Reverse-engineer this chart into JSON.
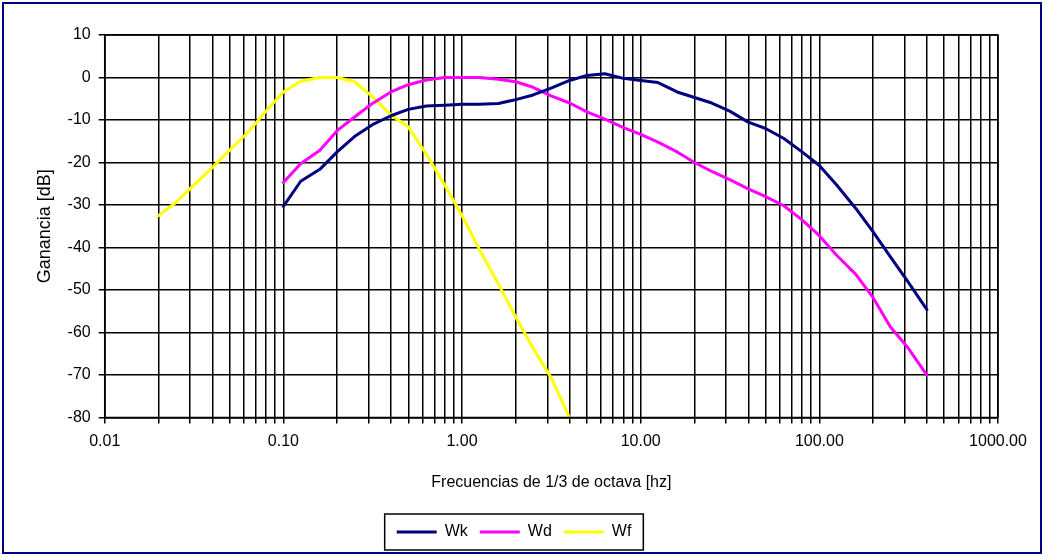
{
  "chart_data": {
    "type": "line",
    "xlabel": "Frecuencias de 1/3 de octava [hz]",
    "ylabel": "Ganancia [dB]",
    "log": "x",
    "grid": true,
    "legend": "bottom",
    "marker": "none",
    "line_style": "solid",
    "xlim": [
      0.01,
      1000
    ],
    "ylim": [
      -80,
      10
    ],
    "xticks": [
      0.01,
      {
        "value": 0.02,
        "label": null
      },
      {
        "value": 0.03,
        "label": null
      },
      {
        "value": 0.04,
        "label": null
      },
      {
        "value": 0.05,
        "label": null
      },
      {
        "value": 0.06,
        "label": null
      },
      {
        "value": 0.07,
        "label": null
      },
      {
        "value": 0.08,
        "label": null
      },
      {
        "value": 0.09,
        "label": null
      },
      {
        "value": 0.1,
        "label": "0.10"
      },
      {
        "value": 0.2,
        "label": null
      },
      {
        "value": 0.3,
        "label": null
      },
      {
        "value": 0.4,
        "label": null
      },
      {
        "value": 0.5,
        "label": null
      },
      {
        "value": 0.6,
        "label": null
      },
      {
        "value": 0.7,
        "label": null
      },
      {
        "value": 0.8,
        "label": null
      },
      {
        "value": 0.9,
        "label": null
      },
      {
        "value": 1,
        "label": "1.00"
      },
      {
        "value": 2,
        "label": null
      },
      {
        "value": 3,
        "label": null
      },
      {
        "value": 4,
        "label": null
      },
      {
        "value": 5,
        "label": null
      },
      {
        "value": 6,
        "label": null
      },
      {
        "value": 7,
        "label": null
      },
      {
        "value": 8,
        "label": null
      },
      {
        "value": 9,
        "label": null
      },
      {
        "value": 10,
        "label": "10.00"
      },
      {
        "value": 20,
        "label": null
      },
      {
        "value": 30,
        "label": null
      },
      {
        "value": 40,
        "label": null
      },
      {
        "value": 50,
        "label": null
      },
      {
        "value": 60,
        "label": null
      },
      {
        "value": 70,
        "label": null
      },
      {
        "value": 80,
        "label": null
      },
      {
        "value": 90,
        "label": null
      },
      {
        "value": 100,
        "label": "100.00"
      },
      {
        "value": 200,
        "label": null
      },
      {
        "value": 300,
        "label": null
      },
      {
        "value": 400,
        "label": null
      },
      {
        "value": 500,
        "label": null
      },
      {
        "value": 600,
        "label": null
      },
      {
        "value": 700,
        "label": null
      },
      {
        "value": 800,
        "label": null
      },
      {
        "value": 900,
        "label": null
      },
      {
        "value": 1000,
        "label": "1000.00"
      }
    ],
    "yticks": [
      10,
      0,
      -10,
      -20,
      -30,
      -40,
      -50,
      -60,
      -70,
      -80
    ],
    "series": [
      {
        "name": "Wk",
        "color": "#000080",
        "x": [
          0.1,
          0.125,
          0.16,
          0.2,
          0.25,
          0.315,
          0.4,
          0.5,
          0.63,
          0.8,
          1,
          1.25,
          1.6,
          2,
          2.5,
          3.15,
          4,
          5,
          6.3,
          8,
          10,
          12.5,
          16,
          20,
          25,
          31.5,
          40,
          50,
          63,
          80,
          100,
          125,
          160,
          200,
          250,
          315,
          400
        ],
        "values": [
          -30.3,
          -24.4,
          -21.6,
          -17.5,
          -13.9,
          -11.1,
          -9,
          -7.5,
          -6.7,
          -6.5,
          -6.3,
          -6.3,
          -6.1,
          -5.2,
          -4.1,
          -2.5,
          -0.7,
          0.5,
          0.9,
          -0.2,
          -0.7,
          -1.2,
          -3.4,
          -4.7,
          -6,
          -7.9,
          -10.5,
          -12,
          -14.3,
          -17.5,
          -20.7,
          -25.3,
          -30.8,
          -36.3,
          -42.2,
          -48.2,
          -54.6
        ]
      },
      {
        "name": "Wd",
        "color": "#ff00ff",
        "x": [
          0.1,
          0.125,
          0.16,
          0.2,
          0.25,
          0.315,
          0.4,
          0.5,
          0.63,
          0.8,
          1,
          1.25,
          1.6,
          2,
          2.5,
          3.15,
          4,
          5,
          6.3,
          8,
          10,
          12.5,
          16,
          20,
          25,
          31.5,
          40,
          50,
          63,
          80,
          100,
          125,
          160,
          200,
          250,
          315,
          400
        ],
        "values": [
          -24.7,
          -20.3,
          -17.1,
          -12.5,
          -9.3,
          -6.1,
          -3.4,
          -1.7,
          -0.6,
          0,
          0,
          0,
          -0.4,
          -1,
          -2.3,
          -4.3,
          -6,
          -8.1,
          -9.8,
          -11.8,
          -13.4,
          -15.2,
          -17.5,
          -20,
          -22.1,
          -24,
          -26.2,
          -28,
          -30.1,
          -33.5,
          -37.2,
          -41.8,
          -46.3,
          -51.8,
          -58.7,
          -63.7,
          -70
        ]
      },
      {
        "name": "Wf",
        "color": "#ffff00",
        "x": [
          0.02,
          0.025,
          0.0315,
          0.04,
          0.05,
          0.063,
          0.08,
          0.1,
          0.125,
          0.16,
          0.2,
          0.25,
          0.315,
          0.4,
          0.5,
          0.63,
          0.8,
          1,
          1.25,
          1.6,
          2,
          2.5,
          3.15,
          4
        ],
        "values": [
          -32.5,
          -29.4,
          -25.3,
          -21.2,
          -17.1,
          -13,
          -7.9,
          -3.4,
          -0.9,
          0,
          0,
          -1,
          -4.5,
          -8.8,
          -11.6,
          -18,
          -25.3,
          -32.5,
          -40.4,
          -48.6,
          -56.4,
          -63.7,
          -70.6,
          -80
        ]
      }
    ]
  }
}
